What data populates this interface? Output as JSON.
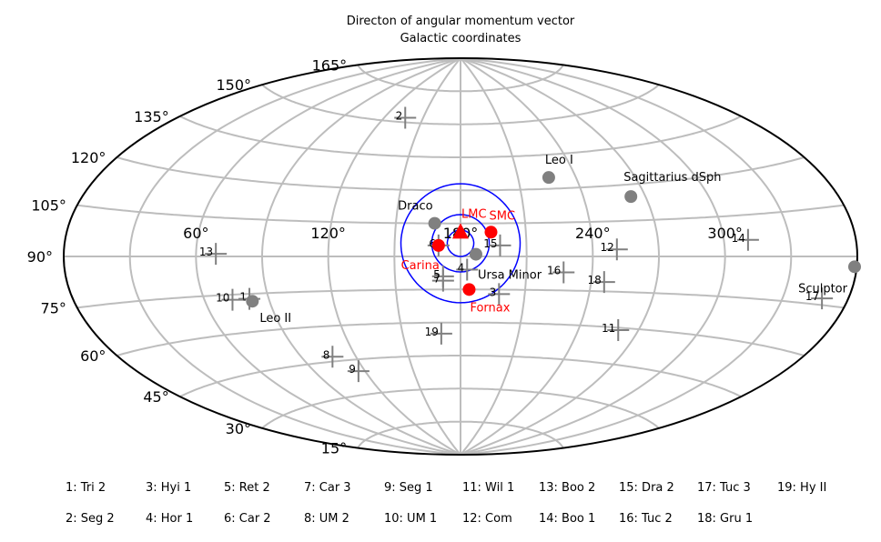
{
  "chart_data": {
    "type": "scatter",
    "projection": "aitoff",
    "title": [
      "Directon of angular momentum vector",
      "Galactic coordinates"
    ],
    "center_longitude": 180,
    "longitude_ticks": [
      {
        "value": 60,
        "label": "60°"
      },
      {
        "value": 120,
        "label": "120°"
      },
      {
        "value": 180,
        "label": "180°"
      },
      {
        "value": 240,
        "label": "240°"
      },
      {
        "value": 300,
        "label": "300°"
      }
    ],
    "latitude_ticks": [
      {
        "value": 75,
        "label": "165°"
      },
      {
        "value": 60,
        "label": "150°"
      },
      {
        "value": 45,
        "label": "135°"
      },
      {
        "value": 30,
        "label": "120°"
      },
      {
        "value": 15,
        "label": "105°"
      },
      {
        "value": 0,
        "label": "90°"
      },
      {
        "value": -15,
        "label": "75°"
      },
      {
        "value": -30,
        "label": "60°"
      },
      {
        "value": -45,
        "label": "45°"
      },
      {
        "value": -60,
        "label": "30°"
      },
      {
        "value": -75,
        "label": "15°"
      }
    ],
    "contours": [
      {
        "center": [
          180,
          6
        ],
        "radius_deg": 6
      },
      {
        "center": [
          180,
          6
        ],
        "radius_deg": 13
      },
      {
        "center": [
          180,
          6
        ],
        "radius_deg": 27
      }
    ],
    "named_points": [
      {
        "name": "Leo I",
        "x": 226,
        "y": 35,
        "color": "#808080"
      },
      {
        "name": "Sagittarius dSph",
        "x": 263,
        "y": 25,
        "color": "#808080"
      },
      {
        "name": "Draco",
        "x": 168,
        "y": 15,
        "color": "#808080"
      },
      {
        "name": "Ursa Minor",
        "x": 187,
        "y": 1,
        "color": "#808080"
      },
      {
        "name": "Leo II",
        "x": 82,
        "y": -18,
        "color": "#808080"
      },
      {
        "name": "Sculptor",
        "x": 359,
        "y": -3,
        "color": "#808080"
      },
      {
        "name": "Carina",
        "x": 170,
        "y": 5,
        "color": "#ff0000",
        "label_pos": "below-left"
      },
      {
        "name": "SMC",
        "x": 194,
        "y": 11,
        "color": "#ff0000"
      },
      {
        "name": "Fornax",
        "x": 184,
        "y": -15,
        "color": "#ff0000"
      },
      {
        "name": "LMC",
        "x": 180,
        "y": 11,
        "color": "#ff0000",
        "marker": "triangle"
      }
    ],
    "numbered_points": [
      {
        "id": "1",
        "x": 81,
        "y": -17
      },
      {
        "id": "2",
        "x": 136,
        "y": 62
      },
      {
        "id": "3",
        "x": 198,
        "y": -17
      },
      {
        "id": "4",
        "x": 183,
        "y": -6
      },
      {
        "id": "5",
        "x": 172,
        "y": -9
      },
      {
        "id": "6",
        "x": 170,
        "y": 5
      },
      {
        "id": "7",
        "x": 172,
        "y": -11
      },
      {
        "id": "8",
        "x": 107,
        "y": -43
      },
      {
        "id": "9",
        "x": 116,
        "y": -50
      },
      {
        "id": "10",
        "x": 73,
        "y": -17
      },
      {
        "id": "11",
        "x": 260,
        "y": -31
      },
      {
        "id": "12",
        "x": 251,
        "y": 3
      },
      {
        "id": "13",
        "x": 69,
        "y": 1
      },
      {
        "id": "14",
        "x": 311,
        "y": 6
      },
      {
        "id": "15",
        "x": 198,
        "y": 5
      },
      {
        "id": "16",
        "x": 227,
        "y": -7
      },
      {
        "id": "17",
        "x": 348,
        "y": -13
      },
      {
        "id": "18",
        "x": 246,
        "y": -11
      },
      {
        "id": "19",
        "x": 170,
        "y": -35
      }
    ],
    "legend": [
      [
        "1: Tri 2",
        "3: Hyi 1",
        "5: Ret 2",
        "7: Car 3",
        "9: Seg 1",
        "11: Wil 1",
        "13: Boo 2",
        "15: Dra 2",
        "17: Tuc 3",
        "19: Hy II"
      ],
      [
        "2: Seg 2",
        "4: Hor 1",
        "6: Car 2",
        "8: UM 2",
        "10: UM 1",
        "12: Com",
        "14: Boo 1",
        "16: Tuc 2",
        "18: Gru 1"
      ]
    ],
    "colors": {
      "grid": "#bdbdbd",
      "contour": "#0000ff",
      "named": "#808080",
      "highlight": "#ff0000",
      "cross": "#808080"
    }
  }
}
